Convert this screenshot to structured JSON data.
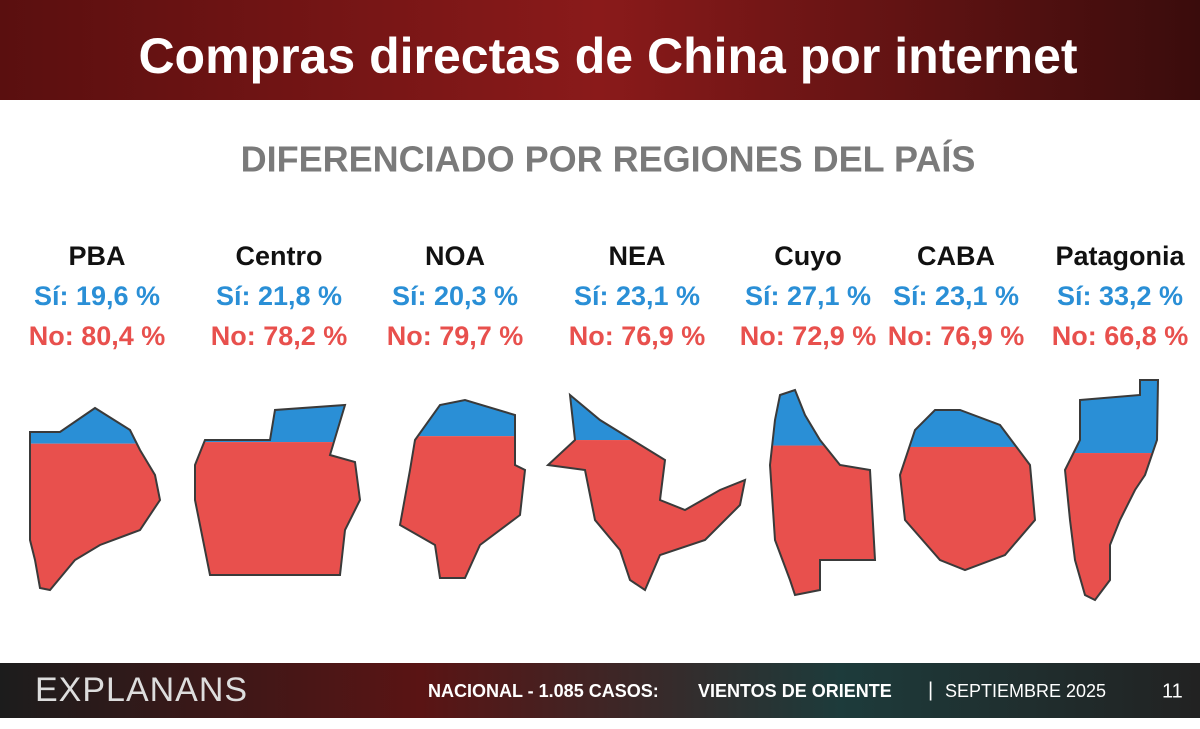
{
  "header": {
    "title": "Compras directas de China por internet"
  },
  "chart_data": {
    "type": "region-fill",
    "subtitle": "DIFERENCIADO POR REGIONES DEL PAÍS",
    "categories": [
      "PBA",
      "Centro",
      "NOA",
      "NEA",
      "Cuyo",
      "CABA",
      "Patagonia"
    ],
    "series": [
      {
        "color": "#2a8fd6",
        "values": [
          19.6,
          21.8,
          20.3,
          23.1,
          27.1,
          23.1,
          33.2
        ],
        "value_labels": [
          "Sí: 19,6 %",
          "Sí: 21,8 %",
          "Sí: 20,3 %",
          "Sí: 23,1 %",
          "Sí: 27,1 %",
          "Sí: 23,1 %",
          "Sí: 33,2 %"
        ]
      },
      {
        "color": "#e8504d",
        "values": [
          80.4,
          78.2,
          79.7,
          76.9,
          72.9,
          76.9,
          66.8
        ],
        "value_labels": [
          "No: 80,4 %",
          "No: 78,2 %",
          "No: 79,7 %",
          "No: 76,9 %",
          "No: 72,9 %",
          "No: 76,9 %",
          "No: 66,8 %"
        ]
      }
    ]
  },
  "footer": {
    "brand": "EXPLANANS",
    "survey": "NACIONAL - 1.085 CASOS:",
    "report": "VIENTOS DE ORIENTE",
    "separator": "|",
    "date": "SEPTIEMBRE 2025",
    "page": "11"
  }
}
